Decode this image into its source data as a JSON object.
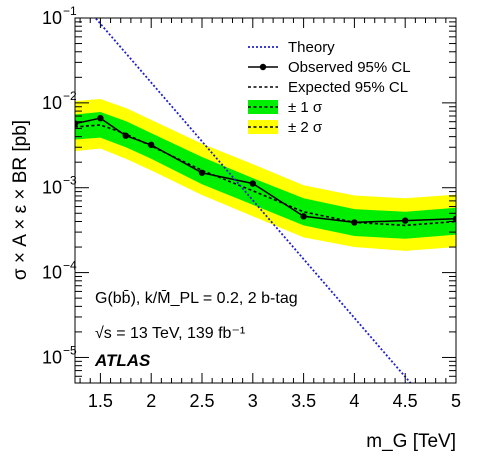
{
  "chart_data": {
    "type": "line",
    "xlabel": "m_G [TeV]",
    "ylabel": "σ × A × ε × BR [pb]",
    "xlim": [
      1.25,
      5.0
    ],
    "ylim": [
      5e-06,
      0.1
    ],
    "yscale": "log",
    "x_ticks": [
      1.5,
      2,
      2.5,
      3,
      3.5,
      4,
      4.5,
      5
    ],
    "x_tick_labels": [
      "1.5",
      "2",
      "2.5",
      "3",
      "3.5",
      "4",
      "4.5",
      "5"
    ],
    "y_ticks": [
      1e-05,
      0.0001,
      0.001,
      0.01,
      0.1
    ],
    "y_tick_labels": [
      {
        "base": "10",
        "exp": "−5"
      },
      {
        "base": "10",
        "exp": "−4"
      },
      {
        "base": "10",
        "exp": "−3"
      },
      {
        "base": "10",
        "exp": "−2"
      },
      {
        "base": "10",
        "exp": "−1"
      }
    ],
    "legend_position": "top-right",
    "legend": [
      {
        "label": "Theory",
        "style": "dotted-blue"
      },
      {
        "label": "Observed 95% CL",
        "style": "solid-black-markers"
      },
      {
        "label": "Expected 95% CL",
        "style": "dotted-black"
      },
      {
        "label": "± 1 σ",
        "style": "green-band"
      },
      {
        "label": "± 2 σ",
        "style": "yellow-band"
      }
    ],
    "band_x": [
      1.25,
      1.5,
      1.75,
      2.0,
      2.5,
      3.0,
      3.5,
      4.0,
      4.5,
      5.0
    ],
    "expected": [
      0.0052,
      0.0055,
      0.0043,
      0.0031,
      0.0016,
      0.00092,
      0.00052,
      0.00039,
      0.00036,
      0.0004
    ],
    "sigma1": {
      "lower": [
        0.0037,
        0.0039,
        0.003,
        0.0022,
        0.0011,
        0.00063,
        0.00036,
        0.00027,
        0.00025,
        0.00028
      ],
      "upper": [
        0.0073,
        0.0078,
        0.0061,
        0.0044,
        0.0023,
        0.0013,
        0.00075,
        0.00056,
        0.00052,
        0.00058
      ]
    },
    "sigma2": {
      "lower": [
        0.0027,
        0.0029,
        0.0022,
        0.0016,
        0.00082,
        0.00046,
        0.00026,
        0.0002,
        0.00018,
        0.0002
      ],
      "upper": [
        0.0105,
        0.0111,
        0.0087,
        0.0063,
        0.0033,
        0.0019,
        0.00107,
        0.00081,
        0.00075,
        0.00083
      ]
    },
    "observed": {
      "x": [
        1.25,
        1.5,
        1.75,
        2.0,
        2.5,
        3.0,
        3.5,
        4.0,
        4.5,
        5.0
      ],
      "y": [
        0.0057,
        0.0066,
        0.0041,
        0.0032,
        0.0015,
        0.00112,
        0.00046,
        0.00039,
        0.00041,
        0.00043
      ]
    },
    "theory": {
      "x": [
        1.25,
        4.6
      ],
      "y": [
        0.19,
        4.3e-06
      ]
    },
    "colors": {
      "theory": "#1f1fcf",
      "sigma1": "#00ee00",
      "sigma2": "#ffff00",
      "observed": "#000000",
      "expected": "#000000"
    },
    "annotations": {
      "process": "G(bb̄), k/M̄_PL = 0.2, 2 b-tag",
      "energy": "√s = 13 TeV, 139 fb⁻¹",
      "experiment": "ATLAS"
    }
  }
}
